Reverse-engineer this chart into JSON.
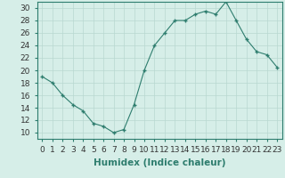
{
  "x": [
    0,
    1,
    2,
    3,
    4,
    5,
    6,
    7,
    8,
    9,
    10,
    11,
    12,
    13,
    14,
    15,
    16,
    17,
    18,
    19,
    20,
    21,
    22,
    23
  ],
  "y": [
    19,
    18,
    16,
    14.5,
    13.5,
    11.5,
    11,
    10,
    10.5,
    14.5,
    20,
    24,
    26,
    28,
    28,
    29,
    29.5,
    29,
    31,
    28,
    25,
    23,
    22.5,
    20.5
  ],
  "line_color": "#2e7d6e",
  "marker_color": "#2e7d6e",
  "bg_color": "#d6eee8",
  "grid_color": "#b8d8d0",
  "xlabel": "Humidex (Indice chaleur)",
  "xlim": [
    -0.5,
    23.5
  ],
  "ylim": [
    9,
    31
  ],
  "yticks": [
    10,
    12,
    14,
    16,
    18,
    20,
    22,
    24,
    26,
    28,
    30
  ],
  "xticks": [
    0,
    1,
    2,
    3,
    4,
    5,
    6,
    7,
    8,
    9,
    10,
    11,
    12,
    13,
    14,
    15,
    16,
    17,
    18,
    19,
    20,
    21,
    22,
    23
  ],
  "xlabel_fontsize": 7.5,
  "tick_fontsize": 6.5
}
